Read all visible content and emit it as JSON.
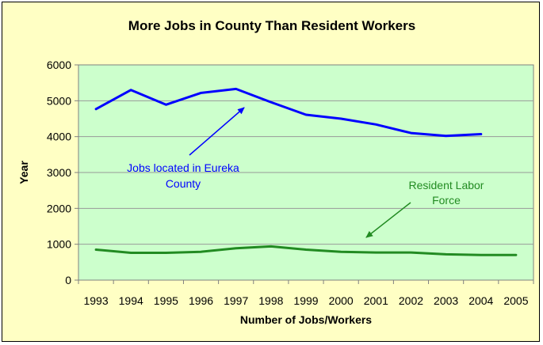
{
  "chart_data": {
    "type": "line",
    "title": "More Jobs in County Than Resident Workers",
    "xlabel": "Number of Jobs/Workers",
    "ylabel": "Year",
    "categories": [
      "1993",
      "1994",
      "1995",
      "1996",
      "1997",
      "1998",
      "1999",
      "2000",
      "2001",
      "2002",
      "2003",
      "2004",
      "2005"
    ],
    "ylim": [
      0,
      6000
    ],
    "yticks": [
      0,
      1000,
      2000,
      3000,
      4000,
      5000,
      6000
    ],
    "grid": true,
    "series": [
      {
        "name": "Jobs located in Eureka County",
        "color": "#0000ff",
        "values": [
          4770,
          5300,
          4890,
          5220,
          5330,
          4960,
          4610,
          4500,
          4340,
          4100,
          4020,
          4070,
          null
        ]
      },
      {
        "name": "Resident Labor Force",
        "color": "#228b22",
        "values": [
          850,
          760,
          760,
          790,
          890,
          940,
          850,
          790,
          770,
          770,
          720,
          700,
          700
        ]
      }
    ],
    "annotations": [
      {
        "lines": [
          "Jobs located in Eureka",
          "County"
        ],
        "color": "#0000ff",
        "series": 0
      },
      {
        "lines": [
          "Resident Labor",
          "Force"
        ],
        "color": "#228b22",
        "series": 1
      }
    ]
  }
}
